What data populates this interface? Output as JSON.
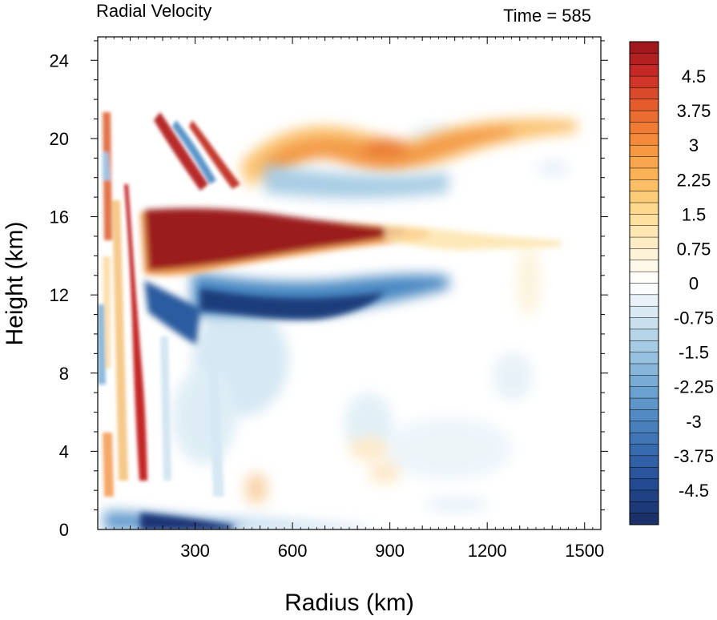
{
  "chart_data": {
    "type": "heatmap",
    "title_left": "Radial Velocity",
    "title_right": "Time = 585",
    "xlabel": "Radius (km)",
    "ylabel": "Height (km)",
    "xlim": [
      0,
      1550
    ],
    "ylim": [
      0,
      25.2
    ],
    "x_ticks": [
      300,
      600,
      900,
      1200,
      1500
    ],
    "x_tick_labels": [
      "300",
      "600",
      "900",
      "1200",
      "1500"
    ],
    "y_ticks": [
      0,
      4,
      8,
      12,
      16,
      20,
      24
    ],
    "y_tick_labels": [
      "0",
      "4",
      "8",
      "12",
      "16",
      "20",
      "24"
    ],
    "colorbar": {
      "min": -5.25,
      "max": 5.25,
      "step": 0.25,
      "tick_values": [
        4.5,
        3.75,
        3,
        2.25,
        1.5,
        0.75,
        0,
        -0.75,
        -1.5,
        -2.25,
        -3,
        -3.75,
        -4.5
      ],
      "tick_labels": [
        "4.5",
        "3.75",
        "3",
        "2.25",
        "1.5",
        "0.75",
        "0",
        "-0.75",
        "-1.5",
        "-2.25",
        "-3",
        "-3.75",
        "-4.5"
      ]
    },
    "features": [
      {
        "feature": "upper outflow jet",
        "value": 5.25,
        "r": [
          160,
          1000
        ],
        "z": [
          13,
          16.5
        ]
      },
      {
        "feature": "outflow layer",
        "value": 3.0,
        "r": [
          450,
          1350
        ],
        "z": [
          17,
          21
        ]
      },
      {
        "feature": "mid-level inflow",
        "value": -5.0,
        "r": [
          160,
          750
        ],
        "z": [
          10.5,
          12.5
        ]
      },
      {
        "feature": "boundary layer inflow",
        "value": -4.5,
        "r": [
          130,
          900
        ],
        "z": [
          0,
          1
        ]
      },
      {
        "feature": "eyewall outflow column",
        "value": 4.5,
        "r": [
          80,
          160
        ],
        "z": [
          2,
          17
        ]
      }
    ]
  }
}
